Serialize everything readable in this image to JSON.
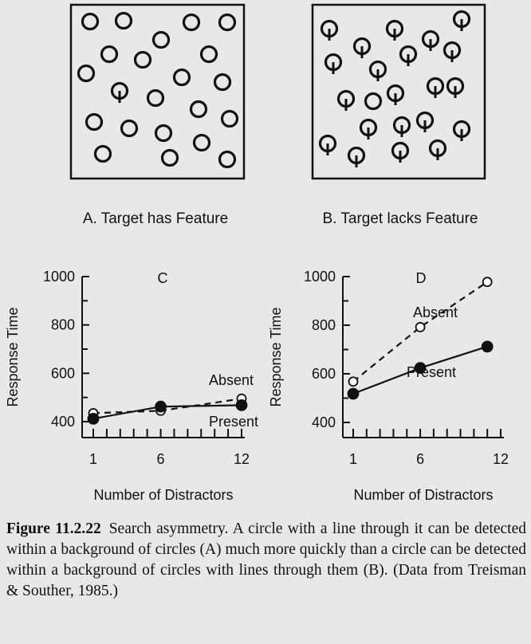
{
  "panels": {
    "a_label": "A. Target has Feature",
    "b_label": "B. Target lacks Feature"
  },
  "caption": {
    "figure_label": "Figure 11.2.22",
    "text": "Search asymmetry. A circle with a line through it can be detected within a background of circles (A) much more quickly than a circle can be detected within a background of circles with lines through them (B). (Data from Treisman & Souther, 1985.)"
  },
  "chart_data": [
    {
      "type": "line",
      "panel_letter": "C",
      "xlabel": "Number of Distractors",
      "ylabel": "Response Time",
      "x_ticks": [
        "1",
        "6",
        "12"
      ],
      "y_ticks": [
        "400",
        "600",
        "800",
        "1000"
      ],
      "ylim": [
        380,
        1000
      ],
      "grid": false,
      "series": [
        {
          "name": "Absent",
          "style": "dashed",
          "marker": "open-circle",
          "x": [
            1,
            6,
            12
          ],
          "y": [
            435,
            445,
            495
          ]
        },
        {
          "name": "Present",
          "style": "solid",
          "marker": "filled-circle",
          "x": [
            1,
            6,
            12
          ],
          "y": [
            412,
            462,
            468
          ]
        }
      ]
    },
    {
      "type": "line",
      "panel_letter": "D",
      "xlabel": "Number of Distractors",
      "ylabel": "Response Time",
      "x_ticks": [
        "1",
        "6",
        "12"
      ],
      "y_ticks": [
        "400",
        "600",
        "800",
        "1000"
      ],
      "ylim": [
        380,
        1000
      ],
      "grid": false,
      "series": [
        {
          "name": "Absent",
          "style": "dashed",
          "marker": "open-circle",
          "x": [
            1,
            6,
            11
          ],
          "y": [
            568,
            792,
            978
          ]
        },
        {
          "name": "Present",
          "style": "solid",
          "marker": "filled-circle",
          "x": [
            1,
            6,
            11
          ],
          "y": [
            518,
            624,
            712
          ]
        }
      ]
    }
  ]
}
